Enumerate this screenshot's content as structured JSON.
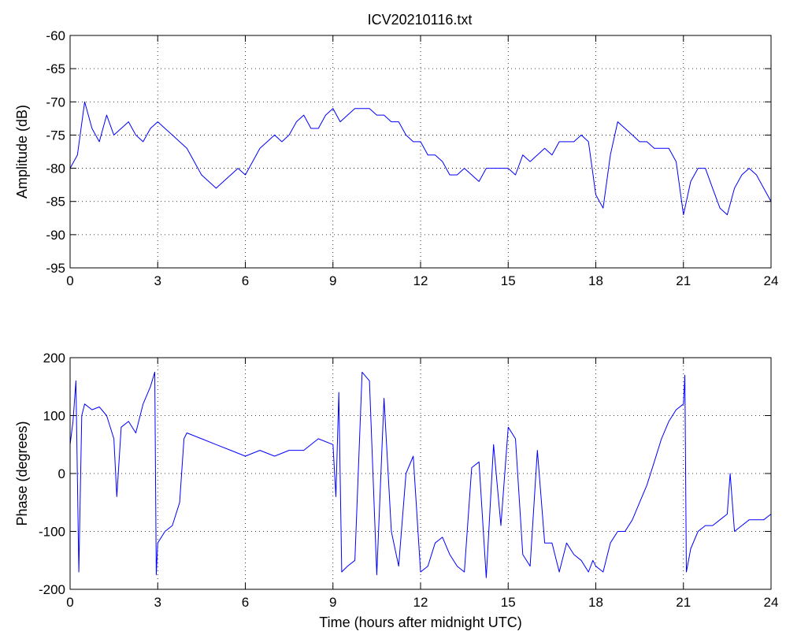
{
  "title": "ICV20210116.txt",
  "chart_data": [
    {
      "type": "line",
      "title": "ICV20210116.txt",
      "xlabel": "",
      "ylabel": "Amplitude (dB)",
      "xlim": [
        0,
        24
      ],
      "ylim": [
        -95,
        -60
      ],
      "xticks": [
        0,
        3,
        6,
        9,
        12,
        15,
        18,
        21,
        24
      ],
      "yticks": [
        -95,
        -90,
        -85,
        -80,
        -75,
        -70,
        -65,
        -60
      ],
      "grid": true,
      "line_color": "#0000ff",
      "series": [
        {
          "x": [
            0.0,
            0.25,
            0.5,
            0.75,
            1.0,
            1.25,
            1.5,
            1.75,
            2.0,
            2.25,
            2.5,
            2.75,
            3.0,
            3.25,
            3.5,
            3.75,
            4.0,
            4.25,
            4.5,
            4.75,
            5.0,
            5.25,
            5.5,
            5.75,
            6.0,
            6.25,
            6.5,
            6.75,
            7.0,
            7.25,
            7.5,
            7.75,
            8.0,
            8.25,
            8.5,
            8.75,
            9.0,
            9.25,
            9.5,
            9.75,
            10.0,
            10.25,
            10.5,
            10.75,
            11.0,
            11.25,
            11.5,
            11.75,
            12.0,
            12.25,
            12.5,
            12.75,
            13.0,
            13.25,
            13.5,
            13.75,
            14.0,
            14.25,
            14.5,
            14.75,
            15.0,
            15.25,
            15.5,
            15.75,
            16.0,
            16.25,
            16.5,
            16.75,
            17.0,
            17.25,
            17.5,
            17.75,
            18.0,
            18.25,
            18.5,
            18.75,
            19.0,
            19.25,
            19.5,
            19.75,
            20.0,
            20.25,
            20.5,
            20.75,
            21.0,
            21.25,
            21.5,
            21.75,
            22.0,
            22.25,
            22.5,
            22.75,
            23.0,
            23.25,
            23.5,
            23.75,
            24.0
          ],
          "y": [
            -80,
            -78,
            -70,
            -74,
            -76,
            -72,
            -75,
            -74,
            -73,
            -75,
            -76,
            -74,
            -73,
            -74,
            -75,
            -76,
            -77,
            -79,
            -81,
            -82,
            -83,
            -82,
            -81,
            -80,
            -81,
            -79,
            -77,
            -76,
            -75,
            -76,
            -75,
            -73,
            -72,
            -74,
            -74,
            -72,
            -71,
            -73,
            -72,
            -71,
            -71,
            -71,
            -72,
            -72,
            -73,
            -73,
            -75,
            -76,
            -76,
            -78,
            -78,
            -79,
            -81,
            -81,
            -80,
            -81,
            -82,
            -80,
            -80,
            -80,
            -80,
            -81,
            -78,
            -79,
            -78,
            -77,
            -78,
            -76,
            -76,
            -76,
            -75,
            -76,
            -84,
            -86,
            -78,
            -73,
            -74,
            -75,
            -76,
            -76,
            -77,
            -77,
            -77,
            -79,
            -87,
            -82,
            -80,
            -80,
            -83,
            -86,
            -87,
            -83,
            -81,
            -80,
            -81,
            -83,
            -85
          ]
        }
      ]
    },
    {
      "type": "line",
      "title": "",
      "xlabel": "Time (hours after midnight UTC)",
      "ylabel": "Phase (degrees)",
      "xlim": [
        0,
        24
      ],
      "ylim": [
        -200,
        200
      ],
      "xticks": [
        0,
        3,
        6,
        9,
        12,
        15,
        18,
        21,
        24
      ],
      "yticks": [
        -200,
        -100,
        0,
        100,
        200
      ],
      "grid": true,
      "line_color": "#0000ff",
      "series": [
        {
          "x": [
            0.0,
            0.1,
            0.2,
            0.3,
            0.4,
            0.5,
            0.75,
            1.0,
            1.25,
            1.5,
            1.6,
            1.75,
            2.0,
            2.25,
            2.5,
            2.75,
            2.9,
            2.95,
            3.0,
            3.25,
            3.5,
            3.75,
            3.9,
            4.0,
            4.5,
            5.0,
            5.5,
            6.0,
            6.5,
            7.0,
            7.5,
            8.0,
            8.5,
            9.0,
            9.1,
            9.2,
            9.3,
            9.5,
            9.75,
            10.0,
            10.25,
            10.5,
            10.75,
            11.0,
            11.25,
            11.5,
            11.75,
            12.0,
            12.25,
            12.5,
            12.75,
            13.0,
            13.25,
            13.5,
            13.75,
            14.0,
            14.25,
            14.5,
            14.75,
            15.0,
            15.25,
            15.5,
            15.75,
            16.0,
            16.25,
            16.5,
            16.75,
            17.0,
            17.25,
            17.5,
            17.75,
            17.9,
            18.0,
            18.25,
            18.5,
            18.75,
            19.0,
            19.25,
            19.5,
            19.75,
            20.0,
            20.25,
            20.5,
            20.75,
            21.0,
            21.05,
            21.1,
            21.25,
            21.5,
            21.75,
            22.0,
            22.25,
            22.5,
            22.6,
            22.75,
            23.0,
            23.25,
            23.5,
            23.75,
            24.0
          ],
          "y": [
            50,
            90,
            160,
            -170,
            100,
            120,
            110,
            115,
            100,
            60,
            -40,
            80,
            90,
            70,
            120,
            150,
            175,
            -175,
            -120,
            -100,
            -90,
            -50,
            60,
            70,
            60,
            50,
            40,
            30,
            40,
            30,
            40,
            40,
            60,
            50,
            -40,
            140,
            -170,
            -160,
            -150,
            175,
            160,
            -175,
            130,
            -100,
            -160,
            0,
            30,
            -170,
            -160,
            -120,
            -110,
            -140,
            -160,
            -170,
            10,
            20,
            -180,
            50,
            -90,
            80,
            60,
            -140,
            -160,
            40,
            -120,
            -120,
            -170,
            -120,
            -140,
            -150,
            -170,
            -150,
            -160,
            -170,
            -120,
            -100,
            -100,
            -80,
            -50,
            -20,
            20,
            60,
            90,
            110,
            120,
            170,
            -170,
            -130,
            -100,
            -90,
            -90,
            -80,
            -70,
            0,
            -100,
            -90,
            -80,
            -80,
            -80,
            -70
          ]
        }
      ]
    }
  ]
}
